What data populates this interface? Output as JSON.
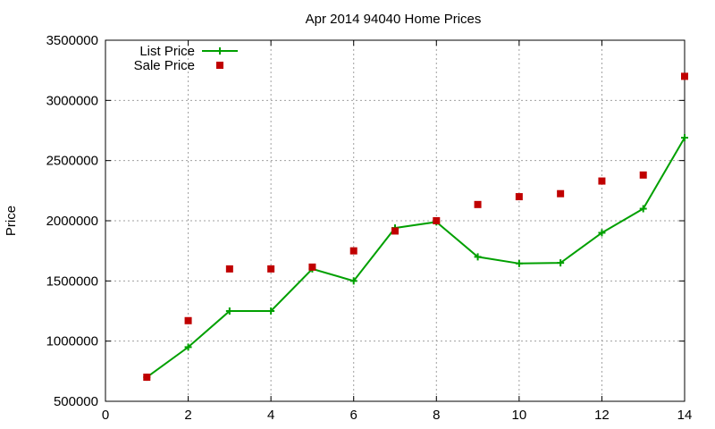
{
  "chart_data": {
    "type": "line",
    "title": "Apr 2014 94040 Home Prices",
    "xlabel": "",
    "ylabel": "Price",
    "xlim": [
      0,
      14
    ],
    "ylim": [
      500000,
      3500000
    ],
    "xticks": [
      0,
      2,
      4,
      6,
      8,
      10,
      12,
      14
    ],
    "yticks": [
      500000,
      1000000,
      1500000,
      2000000,
      2500000,
      3000000,
      3500000
    ],
    "xtick_labels": [
      "0",
      "2",
      "4",
      "6",
      "8",
      "10",
      "12",
      "14"
    ],
    "ytick_labels": [
      "500000",
      "1000000",
      "1500000",
      "2000000",
      "2500000",
      "3000000",
      "3500000"
    ],
    "grid": true,
    "legend_position": "top-left",
    "series": [
      {
        "name": "List Price",
        "type": "line",
        "marker": "plus",
        "color": "#00a000",
        "x": [
          1,
          2,
          3,
          4,
          5,
          6,
          7,
          8,
          9,
          10,
          11,
          12,
          13,
          14
        ],
        "values": [
          700000,
          950000,
          1250000,
          1250000,
          1600000,
          1500000,
          1940000,
          1990000,
          1700000,
          1645000,
          1650000,
          1900000,
          2100000,
          2690000
        ]
      },
      {
        "name": "Sale Price",
        "type": "scatter",
        "marker": "square",
        "color": "#c00000",
        "x": [
          1,
          2,
          3,
          4,
          5,
          6,
          7,
          8,
          9,
          10,
          11,
          12,
          13,
          14
        ],
        "values": [
          700000,
          1170000,
          1600000,
          1600000,
          1615000,
          1750000,
          1915000,
          2000000,
          2135000,
          2200000,
          2225000,
          2330000,
          2380000,
          3200000
        ]
      }
    ]
  }
}
